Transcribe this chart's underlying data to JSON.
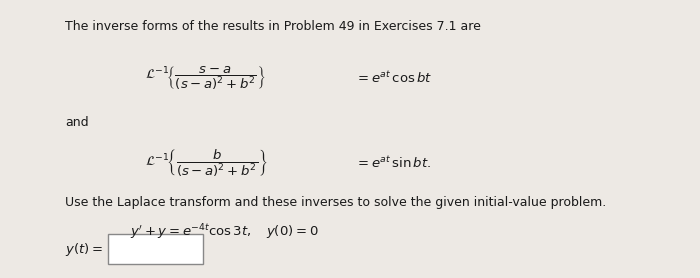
{
  "bg_color": "#e8e6e3",
  "panel_color": "#ede9e4",
  "text_color": "#1a1a1a",
  "fig_width": 7.0,
  "fig_height": 2.78,
  "dpi": 100,
  "line1": "The inverse forms of the results in Problem 49 in Exercises 7.1 are",
  "formula1_lhs": "$\\mathcal{L}^{-1}\\!\\left\\{\\dfrac{s-a}{(s-a)^2+b^2}\\right\\}$",
  "formula1_rhs": "$= e^{at}\\,\\cos bt$",
  "word_and": "and",
  "formula2_lhs": "$\\mathcal{L}^{-1}\\!\\left\\{\\dfrac{b}{(s-a)^2+b^2}\\right\\}$",
  "formula2_rhs": "$= e^{at}\\,\\sin bt.$",
  "line_use": "Use the Laplace transform and these inverses to solve the given initial-value problem.",
  "ivp": "$y' + y = e^{-4t}\\cos 3t, \\quad y(0) = 0$",
  "answer_label": "$y(t) =$",
  "fs_body": 9.0,
  "fs_math": 9.5,
  "fs_ivp": 9.5
}
